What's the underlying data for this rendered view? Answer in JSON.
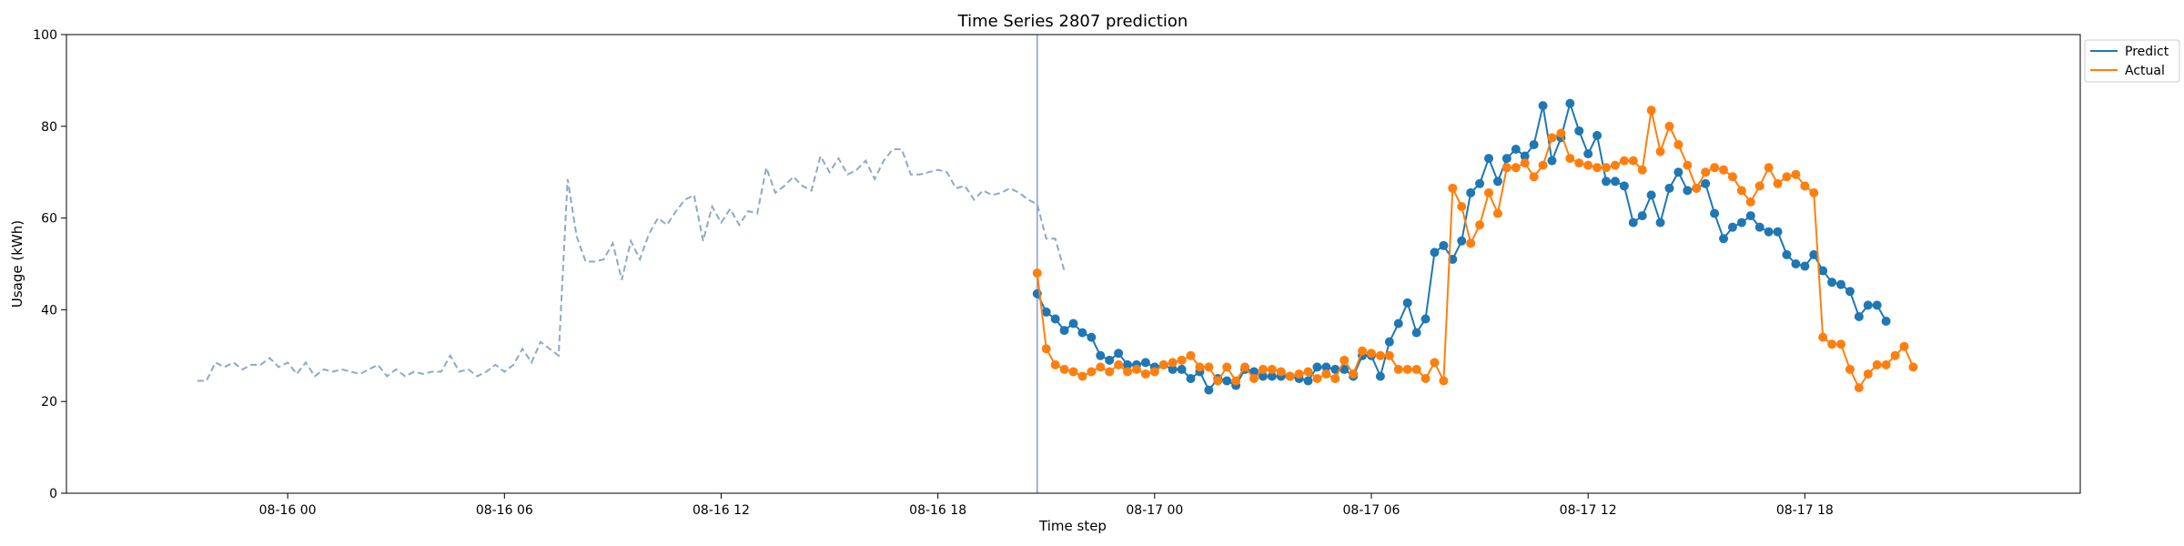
{
  "chart_data": {
    "type": "line",
    "title": "Time Series 2807 prediction",
    "xlabel": "Time step",
    "ylabel": "Usage (kWh)",
    "ylim": [
      0,
      100
    ],
    "xlim": [
      -14.5,
      208.5
    ],
    "yticks": [
      0,
      20,
      40,
      60,
      80,
      100
    ],
    "xticks": [
      {
        "x": 10,
        "label": "08-16 00"
      },
      {
        "x": 34,
        "label": "08-16 06"
      },
      {
        "x": 58,
        "label": "08-16 12"
      },
      {
        "x": 82,
        "label": "08-16 18"
      },
      {
        "x": 106,
        "label": "08-17 00"
      },
      {
        "x": 130,
        "label": "08-17 06"
      },
      {
        "x": 154,
        "label": "08-17 12"
      },
      {
        "x": 178,
        "label": "08-17 18"
      }
    ],
    "forecast_start_x": 93,
    "legend_position": "top-right",
    "colors": {
      "history": "#8fa8c8",
      "predict": "#1f77b4",
      "actual": "#ff7f0e",
      "vline": "#8a9ad0"
    },
    "history": {
      "x_start": 0,
      "values": [
        24.5,
        24.5,
        28.5,
        27.5,
        28.5,
        27,
        28,
        28,
        29.5,
        27.5,
        28.5,
        26,
        28.5,
        25.5,
        27,
        26.5,
        27,
        26.5,
        26,
        27,
        28,
        25.5,
        27,
        25.5,
        26.5,
        26,
        26.5,
        26.5,
        30,
        26.5,
        27,
        25.5,
        26.5,
        28,
        26.5,
        28,
        31.5,
        28.5,
        33,
        31.5,
        30,
        68.5,
        56,
        50.5,
        50.5,
        51,
        54.5,
        46.5,
        55,
        51,
        56.5,
        60,
        58.5,
        61.5,
        64,
        65,
        55,
        62.5,
        59,
        62,
        58.5,
        61.5,
        61,
        71,
        65.5,
        67,
        69,
        67,
        66,
        73.5,
        70,
        73,
        69.5,
        70.5,
        72.5,
        68.5,
        72.5,
        75,
        75,
        69.5,
        69.5,
        70,
        70.5,
        70,
        66.5,
        67,
        64,
        66,
        65,
        65.5,
        66.5,
        65.5,
        64,
        63,
        55.5,
        55.5,
        48.5
      ]
    },
    "series": [
      {
        "name": "Predict",
        "x_start": 93,
        "values": [
          43.5,
          39.5,
          38,
          35.5,
          37,
          35,
          34,
          30,
          29,
          30.5,
          28,
          28,
          28.5,
          27.5,
          28,
          27,
          27,
          25,
          26.5,
          22.5,
          25,
          24.5,
          23.5,
          27,
          26.5,
          25.5,
          25.5,
          25.5,
          25.5,
          25,
          24.5,
          27.5,
          27.5,
          27,
          27,
          25.5,
          30,
          30,
          25.5,
          33,
          37,
          41.5,
          35,
          38,
          52.5,
          54,
          51,
          55,
          65.5,
          67.5,
          73,
          68,
          73,
          75,
          73.5,
          76,
          84.5,
          72.5,
          77.5,
          85,
          79,
          74,
          78,
          68,
          68,
          67,
          59,
          60.5,
          65,
          59,
          66.5,
          70,
          66,
          66.5,
          67.5,
          61,
          55.5,
          58,
          59,
          60.5,
          58,
          57,
          57,
          52,
          50,
          49.5,
          52,
          48.5,
          46,
          45.5,
          44,
          38.5,
          41,
          41,
          37.5
        ]
      },
      {
        "name": "Actual",
        "x_start": 93,
        "values": [
          48,
          31.5,
          28,
          27,
          26.5,
          25.5,
          26.5,
          27.5,
          26.5,
          28,
          26.5,
          27,
          26,
          26.5,
          28,
          28.5,
          29,
          30,
          27.5,
          27.5,
          24.5,
          27.5,
          24.5,
          27.5,
          25,
          27,
          27,
          26.5,
          25.5,
          26,
          26.5,
          25,
          26,
          25,
          29,
          26,
          31,
          30.5,
          30,
          30,
          27,
          27,
          27,
          25,
          28.5,
          24.5,
          66.5,
          62.5,
          54.5,
          58.5,
          65.5,
          61,
          71,
          71,
          72,
          69,
          71.5,
          77.5,
          78.5,
          73,
          72,
          71.5,
          71,
          71,
          71.5,
          72.5,
          72.5,
          70.5,
          83.5,
          74.5,
          80,
          76,
          71.5,
          66.5,
          70,
          71,
          70.5,
          69,
          66,
          63.5,
          67,
          71,
          67.5,
          69,
          69.5,
          67,
          65.5,
          34,
          32.5,
          32.5,
          27,
          23,
          26,
          28,
          28,
          30,
          32,
          27.5
        ]
      }
    ]
  }
}
